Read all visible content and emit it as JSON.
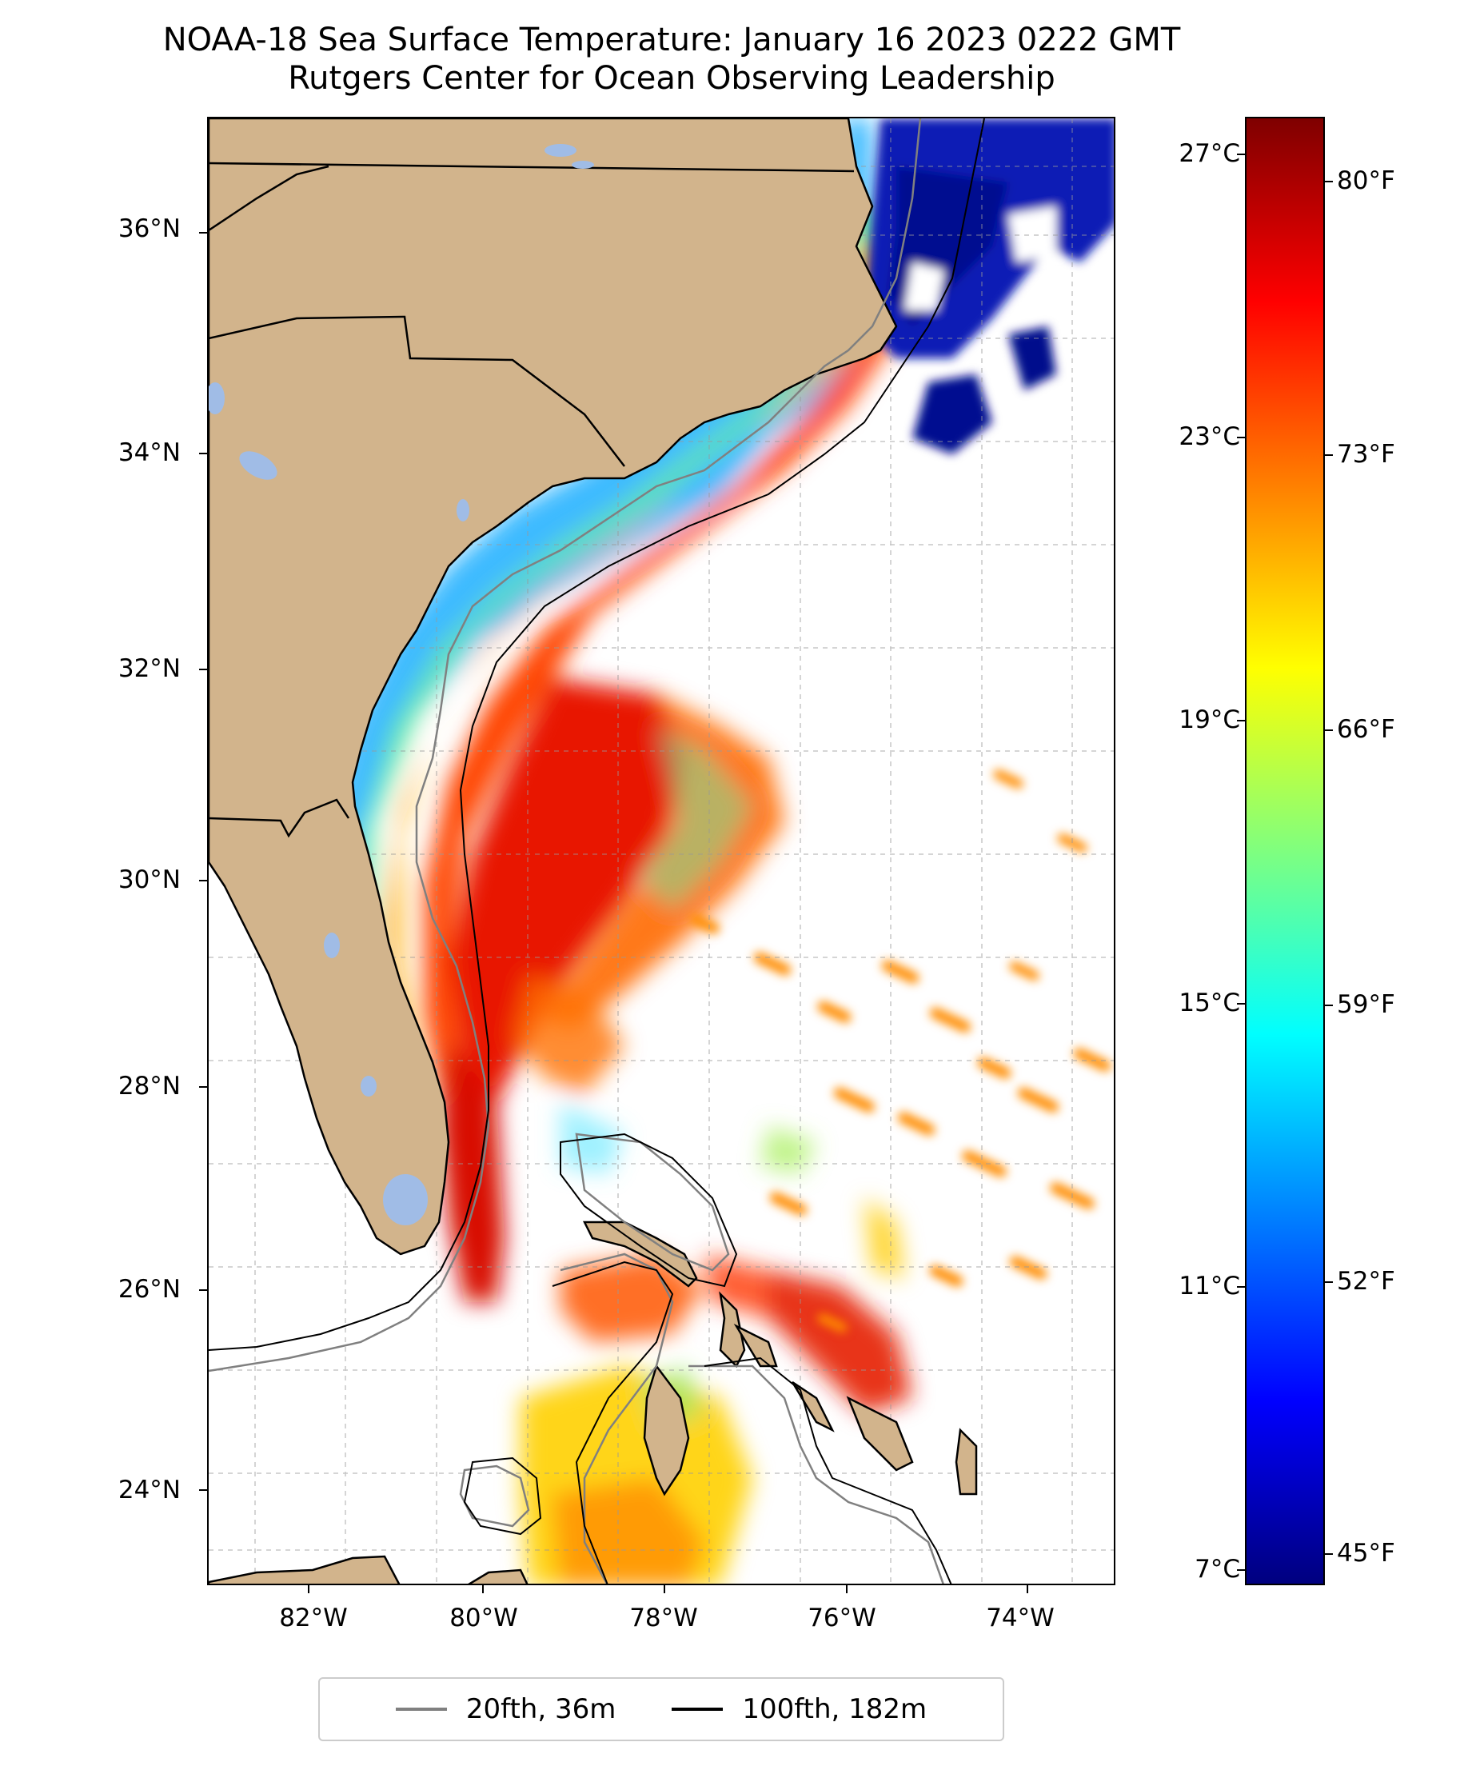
{
  "title": {
    "line1": "NOAA-18 Sea Surface Temperature: January 16 2023 0222 GMT",
    "line2": "Rutgers Center for Ocean Observing Leadership"
  },
  "map": {
    "lat_labels": [
      "36°N",
      "34°N",
      "32°N",
      "30°N",
      "28°N",
      "26°N",
      "24°N"
    ],
    "lon_labels": [
      "82°W",
      "80°W",
      "78°W",
      "76°W",
      "74°W"
    ],
    "lon_range": [
      -83,
      -73
    ],
    "lat_range": [
      23,
      37
    ],
    "colors": {
      "land": "#d2b48c",
      "lakes": "#a0bce6",
      "border": "#000000"
    }
  },
  "colorbar": {
    "celsius_labels": [
      "27°C",
      "23°C",
      "19°C",
      "15°C",
      "11°C",
      "7°C"
    ],
    "fahrenheit_labels": [
      "80°F",
      "73°F",
      "66°F",
      "59°F",
      "52°F",
      "45°F"
    ],
    "colormap": "jet"
  },
  "legend": {
    "items": [
      {
        "label": "20fth, 36m",
        "color": "#808080"
      },
      {
        "label": "100fth, 182m",
        "color": "#000000"
      }
    ]
  }
}
